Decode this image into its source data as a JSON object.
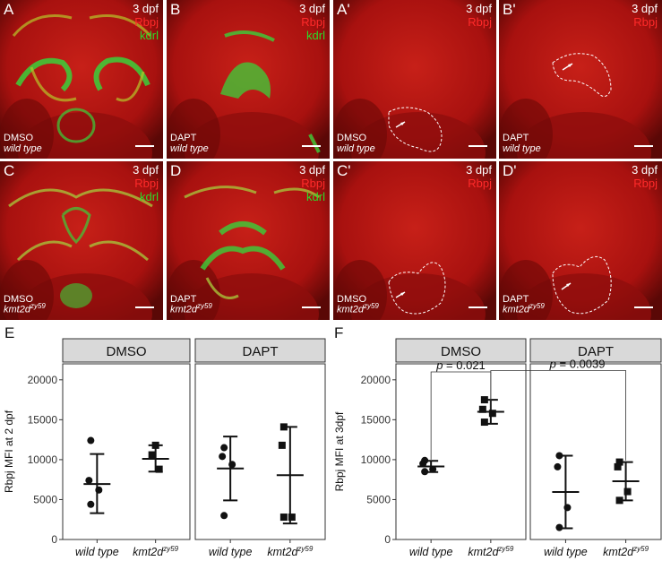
{
  "panels": [
    {
      "id": "A",
      "label": "A",
      "dpf": "3 dpf",
      "stain1": "Rbpj",
      "stain2": "kdrl",
      "treatment": "DMSO",
      "genotype": "wild type"
    },
    {
      "id": "B",
      "label": "B",
      "dpf": "3 dpf",
      "stain1": "Rbpj",
      "stain2": "kdrl",
      "treatment": "DAPT",
      "genotype": "wild type"
    },
    {
      "id": "Ap",
      "label": "A'",
      "dpf": "3 dpf",
      "stain1": "Rbpj",
      "treatment": "DMSO",
      "genotype": "wild type"
    },
    {
      "id": "Bp",
      "label": "B'",
      "dpf": "3 dpf",
      "stain1": "Rbpj",
      "treatment": "DAPT",
      "genotype": "wild type"
    },
    {
      "id": "C",
      "label": "C",
      "dpf": "3 dpf",
      "stain1": "Rbpj",
      "stain2": "kdrl",
      "treatment": "DMSO",
      "genotype": "kmt2d",
      "genotype_sup": "zy59"
    },
    {
      "id": "D",
      "label": "D",
      "dpf": "3 dpf",
      "stain1": "Rbpj",
      "stain2": "kdrl",
      "treatment": "DAPT",
      "genotype": "kmt2d",
      "genotype_sup": "zy59"
    },
    {
      "id": "Cp",
      "label": "C'",
      "dpf": "3 dpf",
      "stain1": "Rbpj",
      "treatment": "DMSO",
      "genotype": "kmt2d",
      "genotype_sup": "zy59"
    },
    {
      "id": "Dp",
      "label": "D'",
      "dpf": "3 dpf",
      "stain1": "Rbpj",
      "treatment": "DAPT",
      "genotype": "kmt2d",
      "genotype_sup": "zy59"
    }
  ],
  "chart_labels": {
    "E": "E",
    "F": "F"
  },
  "colors": {
    "rbpj": "#ff2a2a",
    "kdrl": "#2adc2a",
    "strip": "#d9d9d9"
  },
  "chart_data": [
    {
      "type": "scatter",
      "panel": "E",
      "ylabel": "Rbpj MFI at 2 dpf",
      "ylim": [
        0,
        22000
      ],
      "yticks": [
        0,
        5000,
        10000,
        15000,
        20000
      ],
      "facets": [
        "DMSO",
        "DAPT"
      ],
      "categories": [
        "wild type",
        "kmt2d"
      ],
      "category_sup": [
        "",
        "zy59"
      ],
      "groups": [
        {
          "facet": "DMSO",
          "category": "wild type",
          "marker": "circle",
          "mean": 6950,
          "sd_low": 3300,
          "sd_high": 10700,
          "points": [
            12400,
            7400,
            6200,
            4400
          ]
        },
        {
          "facet": "DMSO",
          "category": "kmt2d",
          "marker": "square",
          "mean": 10100,
          "sd_low": 8500,
          "sd_high": 11800,
          "points": [
            11800,
            10600,
            8800
          ]
        },
        {
          "facet": "DAPT",
          "category": "wild type",
          "marker": "circle",
          "mean": 8900,
          "sd_low": 4900,
          "sd_high": 12900,
          "points": [
            11500,
            10400,
            9400,
            3000
          ]
        },
        {
          "facet": "DAPT",
          "category": "kmt2d",
          "marker": "square",
          "mean": 8050,
          "sd_low": 2000,
          "sd_high": 14100,
          "points": [
            14100,
            11800,
            2800,
            2800
          ]
        }
      ]
    },
    {
      "type": "scatter",
      "panel": "F",
      "ylabel": "Rbpj MFI at 3dpf",
      "ylim": [
        0,
        22000
      ],
      "yticks": [
        0,
        5000,
        10000,
        15000,
        20000
      ],
      "facets": [
        "DMSO",
        "DAPT"
      ],
      "categories": [
        "wild type",
        "kmt2d"
      ],
      "category_sup": [
        "",
        "zy59"
      ],
      "groups": [
        {
          "facet": "DMSO",
          "category": "wild type",
          "marker": "circle",
          "mean": 9150,
          "sd_low": 8450,
          "sd_high": 9850,
          "points": [
            9900,
            9500,
            8800,
            8500
          ]
        },
        {
          "facet": "DMSO",
          "category": "kmt2d",
          "marker": "square",
          "mean": 16000,
          "sd_low": 14500,
          "sd_high": 17500,
          "points": [
            17500,
            16300,
            15800,
            14700
          ]
        },
        {
          "facet": "DAPT",
          "category": "wild type",
          "marker": "circle",
          "mean": 5950,
          "sd_low": 1400,
          "sd_high": 10500,
          "points": [
            10500,
            9100,
            4000,
            1500
          ]
        },
        {
          "facet": "DAPT",
          "category": "kmt2d",
          "marker": "square",
          "mean": 7300,
          "sd_low": 4900,
          "sd_high": 9700,
          "points": [
            9700,
            9100,
            6000,
            4900
          ]
        }
      ],
      "annotations": [
        {
          "text_prefix": "p",
          "text": " = 0.021",
          "from": "DMSO:wild type",
          "to": "DMSO:kmt2d"
        },
        {
          "text_prefix": "p",
          "text": " = 0.0039",
          "from": "DMSO:kmt2d",
          "to": "DAPT:kmt2d"
        }
      ]
    }
  ]
}
